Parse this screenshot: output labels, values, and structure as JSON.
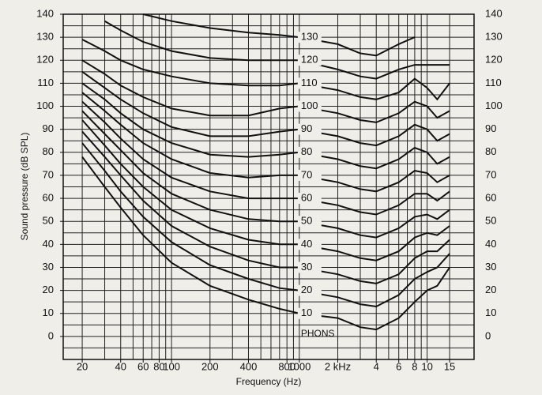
{
  "chart_data": {
    "type": "line",
    "x_label": "Frequency (Hz)",
    "y_label": "Sound pressure (dB SPL)",
    "annotation": "PHONS",
    "log_x": true,
    "grid": true,
    "xlim": [
      14.2,
      23300
    ],
    "ylim": [
      -10,
      140
    ],
    "xticks": [
      20,
      40,
      60,
      80,
      100,
      200,
      400,
      800,
      1000,
      {
        "value": 2000,
        "label": "2 kHz"
      },
      {
        "value": 4000,
        "label": "4"
      },
      {
        "value": 6000,
        "label": "6"
      },
      {
        "value": 8000,
        "label": "8"
      },
      {
        "value": 10000,
        "label": "10"
      },
      {
        "value": 15000,
        "label": "15"
      }
    ],
    "yticks": [
      0,
      10,
      20,
      30,
      40,
      50,
      60,
      70,
      80,
      90,
      100,
      110,
      120,
      130,
      140
    ],
    "xgrid": [
      20,
      30,
      40,
      50,
      60,
      70,
      80,
      90,
      100,
      200,
      300,
      400,
      500,
      600,
      700,
      800,
      900,
      1000,
      2000,
      3000,
      4000,
      5000,
      6000,
      7000,
      8000,
      9000,
      10000,
      15000
    ],
    "ygrid": [
      -5,
      0,
      5,
      10,
      15,
      20,
      25,
      30,
      35,
      40,
      45,
      50,
      55,
      60,
      65,
      70,
      75,
      80,
      85,
      90,
      95,
      100,
      105,
      110,
      115,
      120,
      125,
      130,
      135
    ],
    "x": [
      20,
      30,
      40,
      60,
      100,
      200,
      400,
      700,
      1000,
      2000,
      3000,
      4000,
      6000,
      8000,
      10000,
      12000,
      15000
    ],
    "series": [
      {
        "name": "10",
        "color": "#111111",
        "values": [
          78,
          65,
          56,
          44,
          32,
          22,
          16,
          12,
          10,
          8,
          4,
          3,
          8,
          15,
          20,
          22,
          30
        ]
      },
      {
        "name": "20",
        "color": "#111111",
        "values": [
          84,
          72,
          63,
          52,
          41,
          31,
          25,
          21,
          20,
          17,
          14,
          13,
          18,
          25,
          28,
          30,
          36
        ]
      },
      {
        "name": "30",
        "color": "#111111",
        "values": [
          89,
          78,
          70,
          59,
          48,
          39,
          33,
          30,
          30,
          27,
          24,
          23,
          27,
          34,
          37,
          37,
          42
        ]
      },
      {
        "name": "40",
        "color": "#111111",
        "values": [
          94,
          83,
          75,
          65,
          55,
          47,
          42,
          40,
          40,
          37,
          34,
          33,
          37,
          43,
          45,
          44,
          48
        ]
      },
      {
        "name": "50",
        "color": "#111111",
        "values": [
          98,
          88,
          81,
          71,
          62,
          55,
          51,
          50,
          50,
          47,
          44,
          43,
          47,
          52,
          53,
          51,
          55
        ]
      },
      {
        "name": "60",
        "color": "#111111",
        "values": [
          102,
          93,
          86,
          77,
          69,
          63,
          60,
          60,
          60,
          57,
          54,
          53,
          57,
          62,
          62,
          59,
          63
        ]
      },
      {
        "name": "70",
        "color": "#111111",
        "values": [
          106,
          98,
          92,
          84,
          77,
          71,
          69,
          70,
          70,
          67,
          64,
          63,
          67,
          72,
          71,
          67,
          70
        ]
      },
      {
        "name": "80",
        "color": "#111111",
        "values": [
          110,
          103,
          97,
          90,
          84,
          79,
          78,
          79,
          80,
          77,
          74,
          73,
          77,
          82,
          80,
          75,
          78
        ]
      },
      {
        "name": "90",
        "color": "#111111",
        "values": [
          115,
          108,
          103,
          97,
          91,
          87,
          87,
          89,
          90,
          87,
          84,
          83,
          87,
          92,
          90,
          85,
          88
        ]
      },
      {
        "name": "100",
        "color": "#111111",
        "values": [
          120,
          114,
          109,
          104,
          99,
          96,
          96,
          99,
          100,
          97,
          94,
          93,
          97,
          102,
          100,
          95,
          98
        ]
      },
      {
        "name": "110",
        "color": "#111111",
        "values": [
          129,
          124,
          120,
          116,
          113,
          110,
          109,
          109,
          110,
          107,
          104,
          103,
          106,
          112,
          108,
          103,
          110
        ]
      },
      {
        "name": "120",
        "color": "#111111",
        "values": [
          null,
          137,
          133,
          128,
          124,
          121,
          120,
          120,
          120,
          116,
          113,
          112,
          116,
          118,
          118,
          118,
          118
        ]
      },
      {
        "name": "130",
        "color": "#111111",
        "values": [
          null,
          null,
          null,
          140,
          137,
          134,
          132,
          131,
          130,
          127,
          123,
          122,
          127,
          130,
          null,
          null,
          null
        ]
      }
    ]
  }
}
